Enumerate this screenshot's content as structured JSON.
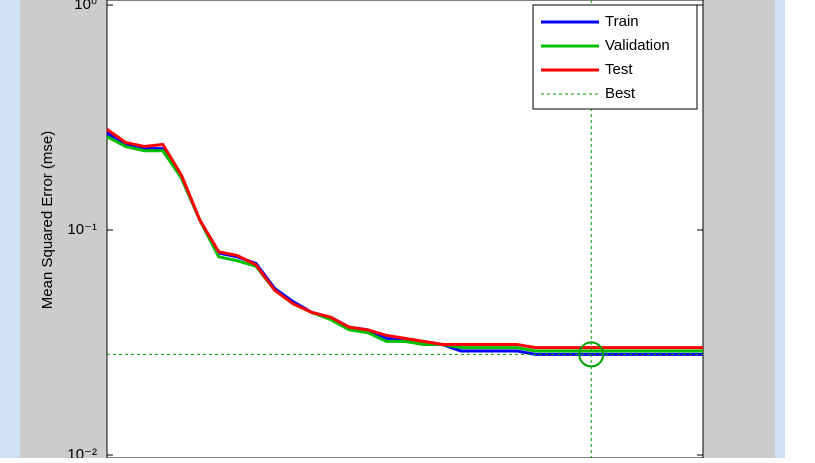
{
  "chart_data": {
    "type": "line",
    "y_label": "Mean Squared Error  (mse)",
    "x": [
      0,
      1,
      2,
      3,
      4,
      5,
      6,
      7,
      8,
      9,
      10,
      11,
      12,
      13,
      14,
      15,
      16,
      17,
      18,
      19,
      20,
      21,
      22,
      23,
      24,
      25,
      26,
      27,
      28,
      29,
      30,
      31,
      32
    ],
    "xlim": [
      0,
      32
    ],
    "ylim": [
      0.01,
      1
    ],
    "log_y": true,
    "yticks": [
      {
        "value": 1,
        "label": "10⁰"
      },
      {
        "value": 0.1,
        "label": "10⁻¹"
      },
      {
        "value": 0.01,
        "label": "10⁻²"
      }
    ],
    "series": [
      {
        "name": "Train",
        "color": "#0000ff",
        "values": [
          0.27,
          0.24,
          0.23,
          0.23,
          0.17,
          0.11,
          0.079,
          0.076,
          0.071,
          0.055,
          0.048,
          0.043,
          0.041,
          0.037,
          0.036,
          0.033,
          0.032,
          0.032,
          0.031,
          0.029,
          0.029,
          0.029,
          0.029,
          0.028,
          0.028,
          0.028,
          0.028,
          0.028,
          0.028,
          0.028,
          0.028,
          0.028,
          0.028
        ]
      },
      {
        "name": "Validation",
        "color": "#00c000",
        "values": [
          0.26,
          0.235,
          0.225,
          0.225,
          0.17,
          0.11,
          0.076,
          0.073,
          0.069,
          0.054,
          0.047,
          0.043,
          0.04,
          0.036,
          0.035,
          0.032,
          0.032,
          0.031,
          0.031,
          0.03,
          0.03,
          0.03,
          0.03,
          0.029,
          0.029,
          0.029,
          0.029,
          0.029,
          0.029,
          0.029,
          0.029,
          0.029,
          0.029
        ]
      },
      {
        "name": "Test",
        "color": "#ff0000",
        "values": [
          0.28,
          0.245,
          0.235,
          0.24,
          0.175,
          0.11,
          0.08,
          0.077,
          0.07,
          0.054,
          0.047,
          0.043,
          0.041,
          0.037,
          0.036,
          0.034,
          0.033,
          0.032,
          0.031,
          0.031,
          0.031,
          0.031,
          0.031,
          0.03,
          0.03,
          0.03,
          0.03,
          0.03,
          0.03,
          0.03,
          0.03,
          0.03,
          0.03
        ]
      }
    ],
    "best": {
      "name": "Best",
      "color": "#00a000",
      "x": 26,
      "value": 0.028
    },
    "legend": "top-right"
  }
}
